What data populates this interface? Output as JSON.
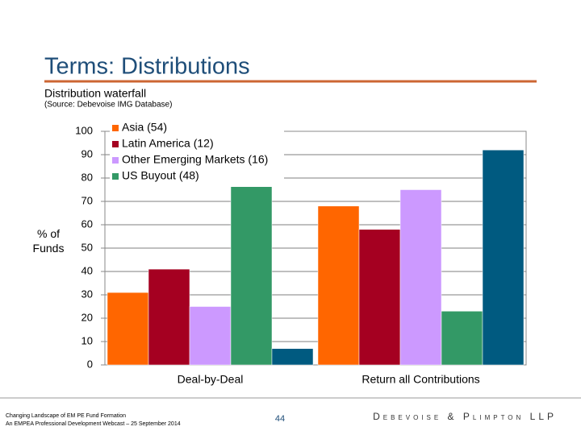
{
  "header": {
    "title": "Terms:  Distributions",
    "subtitle": "Distribution waterfall",
    "source": "(Source:  Debevoise IMG Database)"
  },
  "chart_data": {
    "type": "bar",
    "y_label": "% of Funds",
    "categories": [
      "Deal-by-Deal",
      "Return all Contributions"
    ],
    "series": [
      {
        "name": "Asia (54)",
        "color": "#ff6600",
        "values": [
          31,
          68
        ]
      },
      {
        "name": "Latin America (12)",
        "color": "#a50021",
        "values": [
          41,
          58
        ]
      },
      {
        "name": "Other Emerging Markets (16)",
        "color": "#cc99ff",
        "values": [
          25,
          75
        ]
      },
      {
        "name": "US Buyout (48)",
        "color": "#339966",
        "values": [
          77,
          23
        ]
      },
      {
        "name": null,
        "color": "#005a80",
        "values": [
          7,
          92
        ]
      }
    ],
    "ylim": [
      0,
      100
    ],
    "yticks": [
      0,
      10,
      20,
      30,
      40,
      50,
      60,
      70,
      80,
      90,
      100
    ],
    "grid": true
  },
  "footer": {
    "lines": [
      "Changing Landscape of EM PE Fund Formation",
      "An EMPEA Professional Development Webcast – 25 September 2014"
    ],
    "page": "44",
    "firm": "Debevoise & Plimpton LLP"
  }
}
